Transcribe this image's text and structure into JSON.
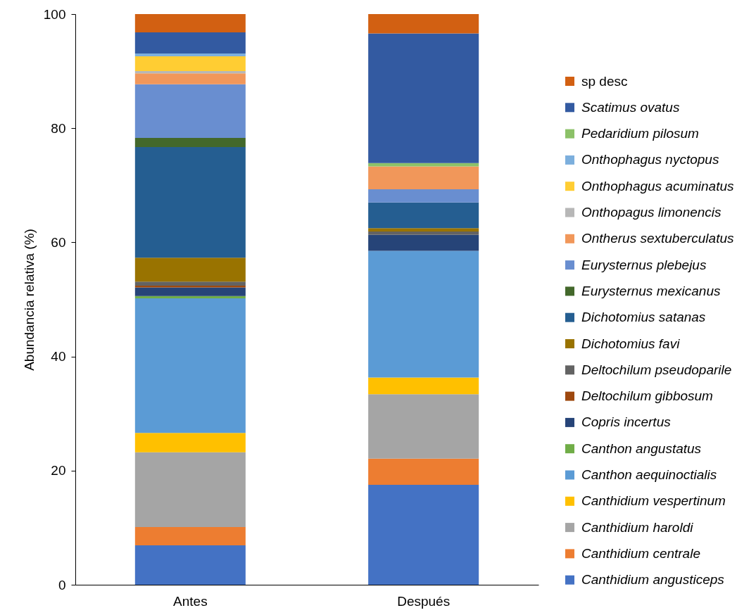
{
  "chart_data": {
    "type": "bar",
    "stacked": true,
    "ylabel": "Abundancia relativa (%)",
    "categories": [
      "Antes",
      "Después"
    ],
    "ylim": [
      0,
      100
    ],
    "yticks": [
      0,
      20,
      40,
      60,
      80,
      100
    ],
    "grid": false,
    "legend": "right",
    "series": [
      {
        "name": "Canthidium angusticeps",
        "color": "#4472c4",
        "values": [
          6.9,
          17.5
        ]
      },
      {
        "name": "Canthidium centrale",
        "color": "#ed7d31",
        "values": [
          3.2,
          4.6
        ]
      },
      {
        "name": "Canthidium haroldi",
        "color": "#a5a5a5",
        "values": [
          13.1,
          11.3
        ]
      },
      {
        "name": "Canthidium vespertinum",
        "color": "#ffc000",
        "values": [
          3.4,
          2.9
        ]
      },
      {
        "name": "Canthon aequinoctialis",
        "color": "#5b9bd5",
        "values": [
          23.6,
          22.2
        ]
      },
      {
        "name": "Canthon angustatus",
        "color": "#70ad47",
        "values": [
          0.4,
          null
        ]
      },
      {
        "name": "Copris incertus",
        "color": "#264478",
        "values": [
          1.5,
          2.8
        ]
      },
      {
        "name": "Deltochilum gibbosum",
        "color": "#9e480e",
        "values": [
          0.3,
          null
        ]
      },
      {
        "name": "Deltochilum pseudoparile",
        "color": "#636363",
        "values": [
          0.7,
          0.6
        ]
      },
      {
        "name": "Dichotomius favi",
        "color": "#997300",
        "values": [
          4.2,
          0.6
        ]
      },
      {
        "name": "Dichotomius satanas",
        "color": "#255e91",
        "values": [
          19.4,
          4.5
        ]
      },
      {
        "name": "Eurysternus mexicanus",
        "color": "#43682b",
        "values": [
          1.6,
          null
        ]
      },
      {
        "name": "Eurysternus plebejus",
        "color": "#698ed0",
        "values": [
          9.4,
          2.3
        ]
      },
      {
        "name": "Ontherus sextuberculatus",
        "color": "#f1975a",
        "values": [
          1.9,
          4.0
        ]
      },
      {
        "name": "Onthopagus limonencis",
        "color": "#b7b7b7",
        "values": [
          0.4,
          null
        ]
      },
      {
        "name": "Onthophagus acuminatus",
        "color": "#ffcd33",
        "values": [
          2.6,
          null
        ]
      },
      {
        "name": "Onthophagus nyctopus",
        "color": "#7cafdd",
        "values": [
          0.5,
          null
        ]
      },
      {
        "name": "Pedaridium pilosum",
        "color": "#8cc168",
        "values": [
          null,
          0.6
        ]
      },
      {
        "name": "Scatimus ovatus",
        "color": "#335aa1",
        "values": [
          3.7,
          22.7
        ]
      },
      {
        "name": "sp desc",
        "color": "#d26012",
        "values": [
          3.2,
          3.4
        ]
      }
    ]
  }
}
